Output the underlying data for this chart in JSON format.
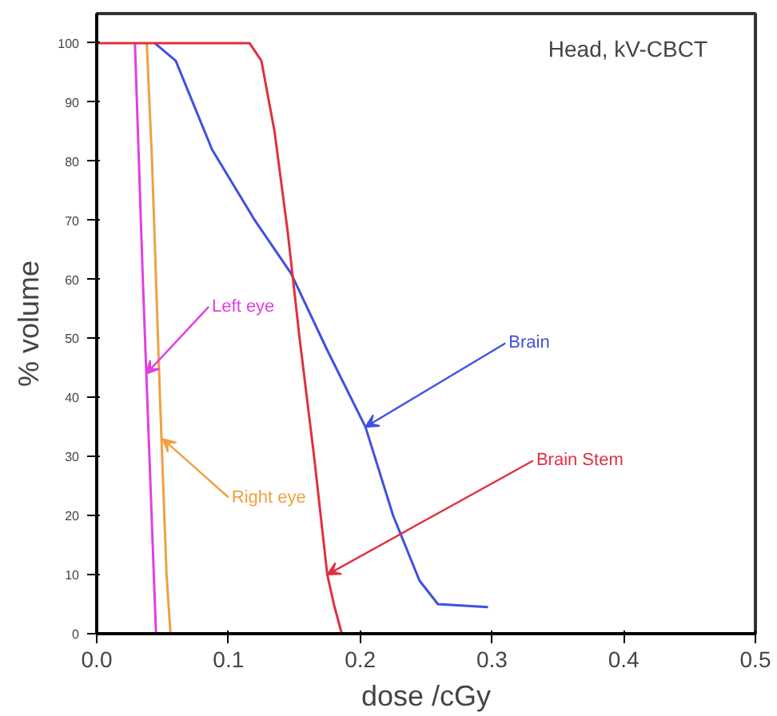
{
  "chart_data": {
    "type": "line",
    "title": "Head, kV-CBCT",
    "xlabel": "dose /cGy",
    "ylabel": "% volume",
    "xlim": [
      0,
      0.5
    ],
    "ylim": [
      0,
      105
    ],
    "xticks": [
      {
        "value": 0,
        "label": "0.0"
      },
      0.1,
      0.2,
      0.3,
      0.4,
      0.5
    ],
    "yticks": [
      0,
      10,
      20,
      30,
      40,
      50,
      60,
      70,
      80,
      90,
      100
    ],
    "grid": false,
    "marker": "none",
    "line_style": "solid",
    "series": [
      {
        "color": "#e040e0",
        "x": [
          0.029,
          0.035,
          0.04,
          0.045,
          0.05
        ],
        "values": [
          100,
          60,
          30,
          0,
          0
        ]
      },
      {
        "color": "#f0a040",
        "x": [
          0.038,
          0.042,
          0.048,
          0.053,
          0.056,
          0.06
        ],
        "values": [
          100,
          80,
          40,
          10,
          0,
          0
        ]
      },
      {
        "color": "#4050e0",
        "x": [
          0.044,
          0.06,
          0.0875,
          0.12,
          0.1475,
          0.175,
          0.204,
          0.225,
          0.245,
          0.259,
          0.297
        ],
        "values": [
          100,
          97,
          82,
          70,
          61,
          48,
          35,
          20,
          9,
          5,
          4.5
        ]
      },
      {
        "color": "#e03040",
        "x": [
          0.0,
          0.116,
          0.125,
          0.135,
          0.145,
          0.154,
          0.165,
          0.175,
          0.18,
          0.186
        ],
        "values": [
          100,
          100,
          97,
          85,
          68,
          50,
          30,
          10,
          5,
          0
        ]
      }
    ],
    "annotations": [
      {
        "text": "Left eye",
        "x": 0.0375,
        "y": 44
      },
      {
        "text": "Right eye",
        "x": 0.05,
        "y": 33
      },
      {
        "text": "Brain",
        "x": 0.204,
        "y": 35
      },
      {
        "text": "Brain Stem",
        "x": 0.175,
        "y": 10
      }
    ]
  }
}
